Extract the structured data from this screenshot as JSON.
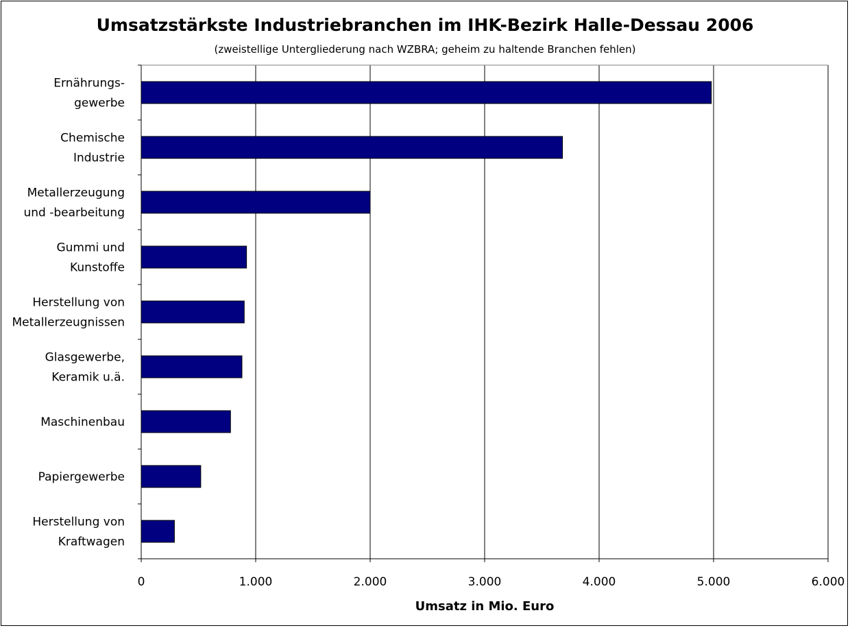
{
  "chart_data": {
    "type": "bar",
    "orientation": "horizontal",
    "title": "Umsatzstärkste Industriebranchen im IHK-Bezirk Halle-Dessau 2006",
    "subtitle": "(zweistellige Untergliederung nach WZBRA; geheim zu haltende Branchen fehlen)",
    "xlabel": "Umsatz in Mio. Euro",
    "ylabel": "",
    "categories": [
      [
        "Ernährungs-",
        "gewerbe"
      ],
      [
        "Chemische",
        "Industrie"
      ],
      [
        "Metallerzeugung",
        "und -bearbeitung"
      ],
      [
        "Gummi und",
        "Kunstoffe"
      ],
      [
        "Herstellung von",
        "Metallerzeugnissen"
      ],
      [
        "Glasgewerbe,",
        "Keramik u.ä."
      ],
      [
        "Maschinenbau"
      ],
      [
        "Papiergewerbe"
      ],
      [
        "Herstellung von",
        "Kraftwagen"
      ]
    ],
    "values": [
      4980,
      3680,
      2000,
      920,
      900,
      880,
      780,
      520,
      290
    ],
    "xlim": [
      0,
      6000
    ],
    "xticks": [
      0,
      1000,
      2000,
      3000,
      4000,
      5000,
      6000
    ],
    "xtick_labels": [
      "0",
      "1.000",
      "2.000",
      "3.000",
      "4.000",
      "5.000",
      "6.000"
    ],
    "grid": "vertical",
    "legend": "none",
    "bar_color": "#000080"
  }
}
